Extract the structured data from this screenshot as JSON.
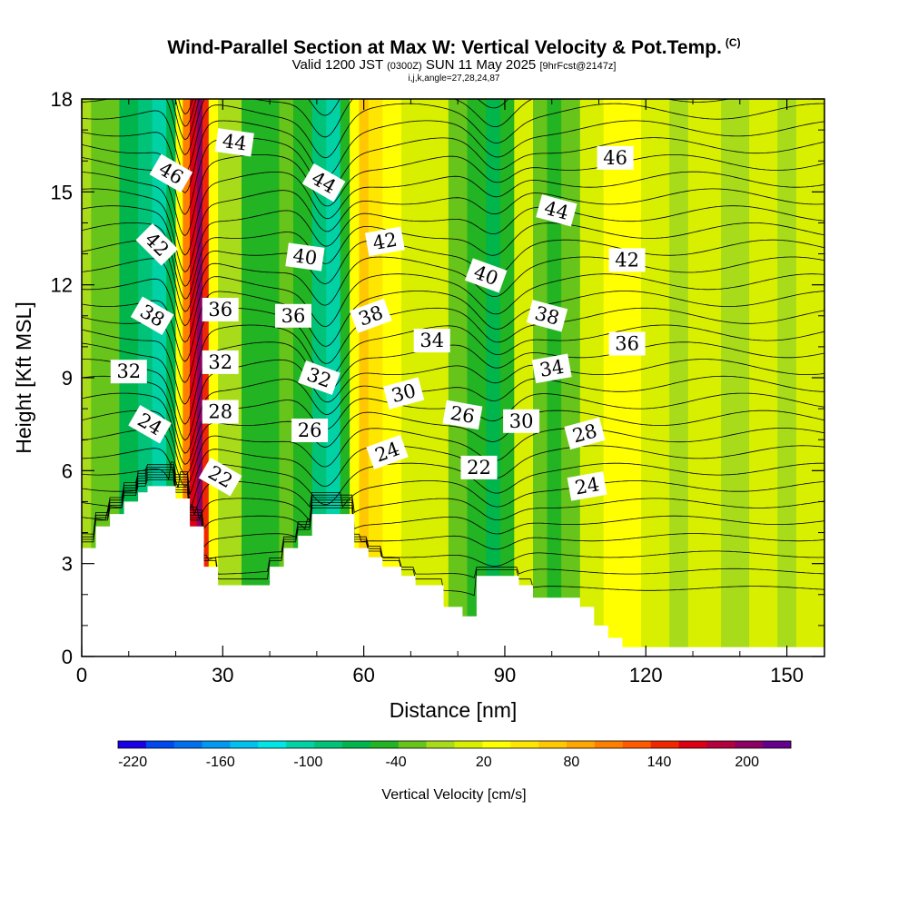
{
  "header": {
    "title": "Wind-Parallel Section at Max W: Vertical Velocity & Pot.Temp.",
    "copyright": "(C)",
    "valid_prefix": "Valid 1200 JST",
    "valid_utc": "(0300Z)",
    "valid_date": "SUN 11 May 2025",
    "forecast_info": "[9hrFcst@2147z]",
    "section_info": "i,j,k,angle=27,28,24,87"
  },
  "chart_data": {
    "type": "heatmap",
    "xlabel": "Distance [nm]",
    "ylabel": "Height [Kft MSL]",
    "xlim": [
      0,
      158
    ],
    "ylim": [
      0,
      18
    ],
    "x_ticks": [
      "0",
      "30",
      "60",
      "90",
      "120",
      "150"
    ],
    "y_ticks": [
      "0",
      "3",
      "6",
      "9",
      "12",
      "15",
      "18"
    ],
    "x_tick_values": [
      0,
      30,
      60,
      90,
      120,
      150
    ],
    "y_tick_values": [
      0,
      3,
      6,
      9,
      12,
      15,
      18
    ],
    "colorbar": {
      "label": "Vertical Velocity [cm/s]",
      "min": -230,
      "max": 230,
      "step": 20,
      "tick_labels": [
        "-220",
        "-160",
        "-100",
        "-40",
        "20",
        "80",
        "140",
        "200"
      ],
      "tick_values": [
        -220,
        -160,
        -100,
        -40,
        20,
        80,
        140,
        200
      ],
      "colors": [
        "#1a00e6",
        "#0048f0",
        "#0070f0",
        "#0098f0",
        "#00c0f0",
        "#00e6e6",
        "#00d2a6",
        "#00c278",
        "#00b64c",
        "#22b422",
        "#66c41a",
        "#a8dc1a",
        "#d8f000",
        "#ffff00",
        "#ffe600",
        "#ffc800",
        "#ffa600",
        "#ff8000",
        "#ff5a00",
        "#f02800",
        "#dc0014",
        "#b4003c",
        "#8c0064",
        "#64008c"
      ]
    },
    "vertical_velocity_bands": [
      {
        "x": 0,
        "w": 2,
        "value": 0
      },
      {
        "x": 2,
        "w": 6,
        "value": -30
      },
      {
        "x": 8,
        "w": 4,
        "value": -60
      },
      {
        "x": 12,
        "w": 3,
        "value": -80
      },
      {
        "x": 15,
        "w": 3,
        "value": -100
      },
      {
        "x": 18,
        "w": 2,
        "value": -60
      },
      {
        "x": 20,
        "w": 1.5,
        "value": 40
      },
      {
        "x": 21.5,
        "w": 1.5,
        "value": 120
      },
      {
        "x": 23,
        "w": 1.5,
        "value": 180
      },
      {
        "x": 24.5,
        "w": 1.2,
        "value": 220
      },
      {
        "x": 25.7,
        "w": 1.3,
        "value": 150
      },
      {
        "x": 27,
        "w": 2,
        "value": 40
      },
      {
        "x": 29,
        "w": 5,
        "value": -10
      },
      {
        "x": 34,
        "w": 8,
        "value": -40
      },
      {
        "x": 42,
        "w": 3,
        "value": -20
      },
      {
        "x": 45,
        "w": 4,
        "value": -50
      },
      {
        "x": 49,
        "w": 3,
        "value": -80
      },
      {
        "x": 52,
        "w": 3,
        "value": -100
      },
      {
        "x": 55,
        "w": 2,
        "value": -40
      },
      {
        "x": 57,
        "w": 2,
        "value": 40
      },
      {
        "x": 59,
        "w": 2,
        "value": 80
      },
      {
        "x": 61,
        "w": 3,
        "value": 60
      },
      {
        "x": 64,
        "w": 4,
        "value": 40
      },
      {
        "x": 68,
        "w": 5,
        "value": 20
      },
      {
        "x": 73,
        "w": 5,
        "value": 10
      },
      {
        "x": 78,
        "w": 4,
        "value": -20
      },
      {
        "x": 82,
        "w": 4,
        "value": -50
      },
      {
        "x": 86,
        "w": 3,
        "value": -70
      },
      {
        "x": 89,
        "w": 3,
        "value": -40
      },
      {
        "x": 92,
        "w": 4,
        "value": 10
      },
      {
        "x": 96,
        "w": 3,
        "value": -20
      },
      {
        "x": 99,
        "w": 3,
        "value": -50
      },
      {
        "x": 102,
        "w": 4,
        "value": -20
      },
      {
        "x": 106,
        "w": 5,
        "value": 10
      },
      {
        "x": 111,
        "w": 8,
        "value": 30
      },
      {
        "x": 119,
        "w": 6,
        "value": 20
      },
      {
        "x": 125,
        "w": 4,
        "value": 0
      },
      {
        "x": 129,
        "w": 7,
        "value": 20
      },
      {
        "x": 136,
        "w": 6,
        "value": -10
      },
      {
        "x": 142,
        "w": 6,
        "value": 20
      },
      {
        "x": 148,
        "w": 4,
        "value": 0
      },
      {
        "x": 152,
        "w": 6,
        "value": 20
      }
    ],
    "terrain": [
      [
        0,
        3.5
      ],
      [
        3,
        3.5
      ],
      [
        3,
        4.2
      ],
      [
        6,
        4.2
      ],
      [
        6,
        4.6
      ],
      [
        9,
        4.6
      ],
      [
        9,
        5.0
      ],
      [
        12,
        5.0
      ],
      [
        12,
        5.3
      ],
      [
        14,
        5.3
      ],
      [
        14,
        5.5
      ],
      [
        20,
        5.5
      ],
      [
        20,
        5.1
      ],
      [
        23,
        5.1
      ],
      [
        23,
        4.2
      ],
      [
        26,
        4.2
      ],
      [
        26,
        2.9
      ],
      [
        29,
        2.9
      ],
      [
        29,
        2.3
      ],
      [
        40,
        2.3
      ],
      [
        40,
        2.9
      ],
      [
        43,
        2.9
      ],
      [
        43,
        3.5
      ],
      [
        46,
        3.5
      ],
      [
        46,
        3.9
      ],
      [
        49,
        3.9
      ],
      [
        49,
        4.6
      ],
      [
        58,
        4.6
      ],
      [
        58,
        3.5
      ],
      [
        61,
        3.5
      ],
      [
        61,
        3.2
      ],
      [
        64,
        3.2
      ],
      [
        64,
        2.9
      ],
      [
        68,
        2.9
      ],
      [
        68,
        2.6
      ],
      [
        71,
        2.6
      ],
      [
        71,
        2.3
      ],
      [
        77,
        2.3
      ],
      [
        77,
        1.6
      ],
      [
        81,
        1.6
      ],
      [
        81,
        1.3
      ],
      [
        84,
        1.3
      ],
      [
        84,
        2.6
      ],
      [
        93,
        2.6
      ],
      [
        93,
        2.3
      ],
      [
        96,
        2.3
      ],
      [
        96,
        1.9
      ],
      [
        106,
        1.9
      ],
      [
        106,
        1.6
      ],
      [
        109,
        1.6
      ],
      [
        109,
        1.0
      ],
      [
        112,
        1.0
      ],
      [
        112,
        0.6
      ],
      [
        115,
        0.6
      ],
      [
        115,
        0.3
      ],
      [
        158,
        0.3
      ]
    ],
    "potential_temperature_contours": {
      "levels_min": 18,
      "levels_max": 48,
      "interval": 1,
      "labels": [
        {
          "text": "46",
          "x": 19,
          "y": 15.6,
          "angle": 30
        },
        {
          "text": "44",
          "x": 32.5,
          "y": 16.6,
          "angle": 8
        },
        {
          "text": "42",
          "x": 16,
          "y": 13.3,
          "angle": 45
        },
        {
          "text": "38",
          "x": 15,
          "y": 11.0,
          "angle": 30
        },
        {
          "text": "32",
          "x": 10,
          "y": 9.2,
          "angle": 0
        },
        {
          "text": "24",
          "x": 14.5,
          "y": 7.5,
          "angle": 30
        },
        {
          "text": "36",
          "x": 29.5,
          "y": 11.2,
          "angle": 0
        },
        {
          "text": "32",
          "x": 29.5,
          "y": 9.5,
          "angle": 0
        },
        {
          "text": "28",
          "x": 29.5,
          "y": 7.9,
          "angle": 0
        },
        {
          "text": "22",
          "x": 29.5,
          "y": 5.8,
          "angle": 30
        },
        {
          "text": "44",
          "x": 51.5,
          "y": 15.3,
          "angle": 30
        },
        {
          "text": "40",
          "x": 47.5,
          "y": 12.9,
          "angle": 8
        },
        {
          "text": "36",
          "x": 45,
          "y": 11.0,
          "angle": 0
        },
        {
          "text": "32",
          "x": 50.5,
          "y": 9.0,
          "angle": 20
        },
        {
          "text": "26",
          "x": 48.5,
          "y": 7.3,
          "angle": 0
        },
        {
          "text": "42",
          "x": 64.5,
          "y": 13.4,
          "angle": -10
        },
        {
          "text": "38",
          "x": 61.5,
          "y": 11.0,
          "angle": -20
        },
        {
          "text": "34",
          "x": 74.5,
          "y": 10.2,
          "angle": 0
        },
        {
          "text": "30",
          "x": 68.5,
          "y": 8.5,
          "angle": -15
        },
        {
          "text": "24",
          "x": 65,
          "y": 6.6,
          "angle": -20
        },
        {
          "text": "40",
          "x": 86,
          "y": 12.3,
          "angle": 20
        },
        {
          "text": "26",
          "x": 81,
          "y": 7.8,
          "angle": 10
        },
        {
          "text": "22",
          "x": 84.5,
          "y": 6.1,
          "angle": 0
        },
        {
          "text": "30",
          "x": 93.5,
          "y": 7.6,
          "angle": 0
        },
        {
          "text": "44",
          "x": 101,
          "y": 14.4,
          "angle": 15
        },
        {
          "text": "38",
          "x": 99,
          "y": 11.0,
          "angle": 15
        },
        {
          "text": "34",
          "x": 100,
          "y": 9.3,
          "angle": -10
        },
        {
          "text": "28",
          "x": 107,
          "y": 7.2,
          "angle": -15
        },
        {
          "text": "24",
          "x": 107.5,
          "y": 5.5,
          "angle": -10
        },
        {
          "text": "46",
          "x": 113.5,
          "y": 16.1,
          "angle": 0
        },
        {
          "text": "42",
          "x": 116,
          "y": 12.8,
          "angle": 0
        },
        {
          "text": "36",
          "x": 116,
          "y": 10.1,
          "angle": 0
        }
      ]
    }
  }
}
